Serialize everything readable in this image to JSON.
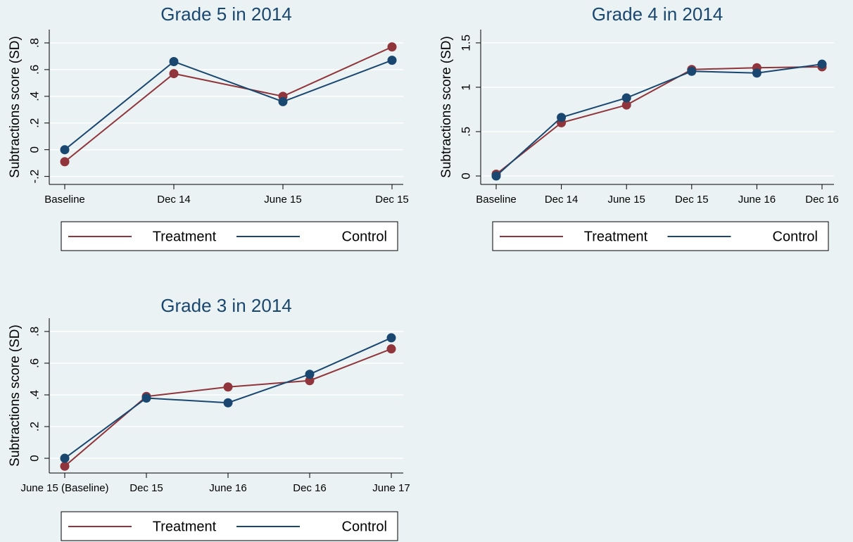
{
  "chart_data": [
    {
      "type": "line",
      "title": "Grade 5 in 2014",
      "ylabel": "Subtractions score (SD)",
      "categories": [
        "Baseline",
        "Dec 14",
        "June 15",
        "Dec 15"
      ],
      "series": [
        {
          "name": "Treatment",
          "color": "#90353b",
          "values": [
            -0.09,
            0.57,
            0.4,
            0.77
          ]
        },
        {
          "name": "Control",
          "color": "#1a476f",
          "values": [
            0,
            0.66,
            0.36,
            0.67
          ]
        }
      ],
      "ylim": [
        -0.26,
        0.9
      ],
      "yticks": [
        {
          "value": -0.2,
          "label": "-.2"
        },
        0,
        {
          "value": 0.2,
          "label": ".2"
        },
        {
          "value": 0.4,
          "label": ".4"
        },
        {
          "value": 0.6,
          "label": ".6"
        },
        {
          "value": 0.8,
          "label": ".8"
        }
      ],
      "grid": true
    },
    {
      "type": "line",
      "title": "Grade 4 in 2014",
      "ylabel": "Subtractions score (SD)",
      "categories": [
        "Baseline",
        "Dec 14",
        "June 15",
        "Dec 15",
        "June 16",
        "Dec 16"
      ],
      "series": [
        {
          "name": "Treatment",
          "color": "#90353b",
          "values": [
            0.02,
            0.6,
            0.8,
            1.2,
            1.22,
            1.23
          ]
        },
        {
          "name": "Control",
          "color": "#1a476f",
          "values": [
            0,
            0.66,
            0.88,
            1.18,
            1.16,
            1.26
          ]
        }
      ],
      "ylim": [
        -0.095,
        1.65
      ],
      "yticks": [
        0,
        {
          "value": 0.5,
          "label": ".5"
        },
        1,
        1.5
      ],
      "grid": true
    },
    {
      "type": "line",
      "title": "Grade 3 in 2014",
      "ylabel": "Subtractions score (SD)",
      "categories": [
        "June 15 (Baseline)",
        "Dec 15",
        "June 16",
        "Dec 16",
        "June 17"
      ],
      "series": [
        {
          "name": "Treatment",
          "color": "#90353b",
          "values": [
            -0.05,
            0.39,
            0.45,
            0.49,
            0.69
          ]
        },
        {
          "name": "Control",
          "color": "#1a476f",
          "values": [
            0,
            0.38,
            0.35,
            0.53,
            0.76
          ]
        }
      ],
      "ylim": [
        -0.093,
        0.884
      ],
      "yticks": [
        0,
        {
          "value": 0.2,
          "label": ".2"
        },
        {
          "value": 0.4,
          "label": ".4"
        },
        {
          "value": 0.6,
          "label": ".6"
        },
        {
          "value": 0.8,
          "label": ".8"
        }
      ],
      "grid": true
    }
  ]
}
